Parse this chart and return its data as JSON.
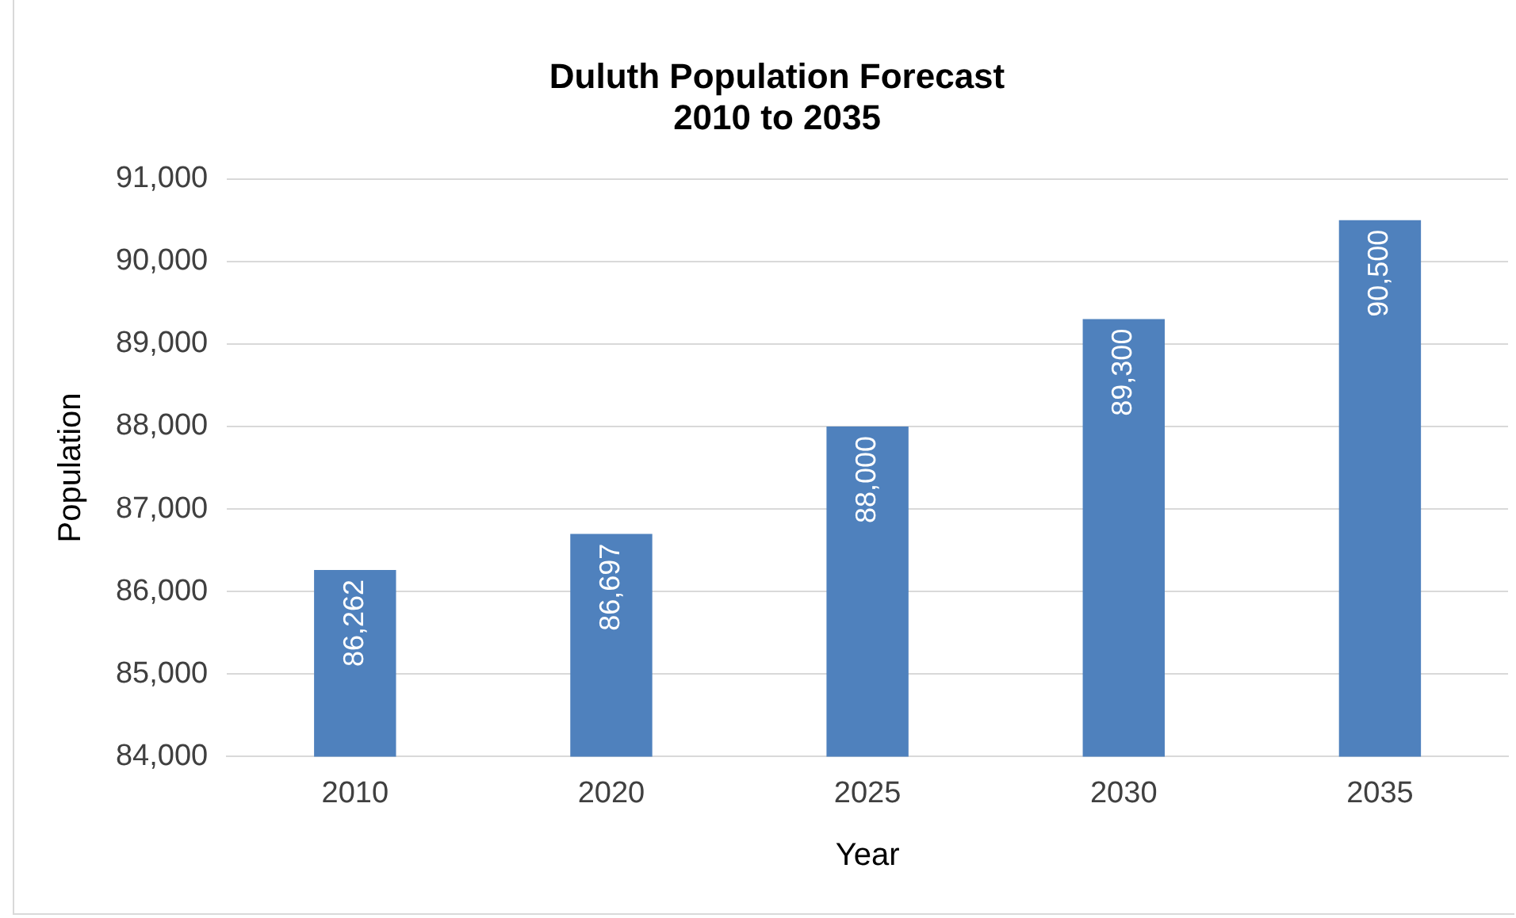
{
  "chart_data": {
    "type": "bar",
    "title": "Duluth Population Forecast\n2010 to 2035",
    "xlabel": "Year",
    "ylabel": "Population",
    "categories": [
      "2010",
      "2020",
      "2025",
      "2030",
      "2035"
    ],
    "values": [
      86262,
      86697,
      88000,
      89300,
      90500
    ],
    "color": "#4f81bd",
    "value_labels": [
      "86,262",
      "86,697",
      "88,000",
      "89,300",
      "90,500"
    ],
    "ylim": [
      84000,
      91000
    ],
    "yticks": [
      {
        "value": 84000,
        "label": "84,000"
      },
      {
        "value": 85000,
        "label": "85,000"
      },
      {
        "value": 86000,
        "label": "86,000"
      },
      {
        "value": 87000,
        "label": "87,000"
      },
      {
        "value": 88000,
        "label": "88,000"
      },
      {
        "value": 89000,
        "label": "89,000"
      },
      {
        "value": 90000,
        "label": "90,000"
      },
      {
        "value": 91000,
        "label": "91,000"
      }
    ],
    "grid": "y"
  }
}
